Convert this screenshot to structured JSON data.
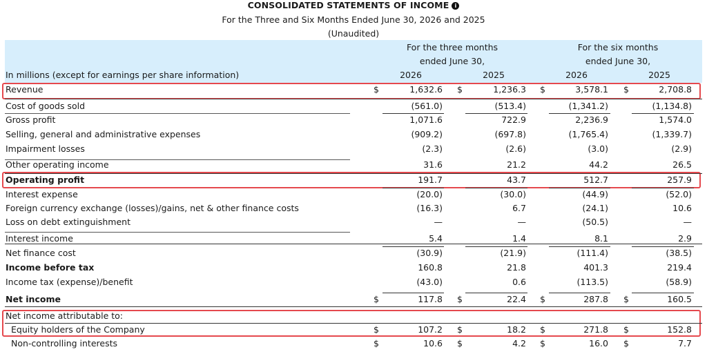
{
  "title": "CONSOLIDATED STATEMENTS OF INCOME",
  "info_glyph": "i",
  "subtitle": "For the Three and Six Months Ended June 30, 2026 and 2025",
  "unaudited": "(Unaudited)",
  "header": {
    "three_months_l1": "For the three months",
    "three_months_l2": "ended June 30,",
    "six_months_l1": "For the six months",
    "six_months_l2": "ended June 30,",
    "units_label": "In millions (except for earnings per share information)",
    "years": [
      "2026",
      "2025",
      "2026",
      "2025"
    ]
  },
  "currency_symbol": "$",
  "rows": [
    {
      "label": "Revenue",
      "values": [
        "1,632.6",
        "1,236.3",
        "3,578.1",
        "2,708.8"
      ],
      "dollar": true
    },
    {
      "label": "Cost of goods sold",
      "values": [
        "(561.0)",
        "(513.4)",
        "(1,341.2)",
        "(1,134.8)"
      ]
    },
    {
      "label": "Gross profit",
      "values": [
        "1,071.6",
        "722.9",
        "2,236.9",
        "1,574.0"
      ]
    },
    {
      "label": "Selling, general and administrative expenses",
      "values": [
        "(909.2)",
        "(697.8)",
        "(1,765.4)",
        "(1,339.7)"
      ]
    },
    {
      "label": "Impairment losses",
      "values": [
        "(2.3)",
        "(2.6)",
        "(3.0)",
        "(2.9)"
      ]
    },
    {
      "label": "Other operating income",
      "values": [
        "31.6",
        "21.2",
        "44.2",
        "26.5"
      ]
    },
    {
      "label": "Operating profit",
      "values": [
        "191.7",
        "43.7",
        "512.7",
        "257.9"
      ],
      "bold": true
    },
    {
      "label": "Interest expense",
      "values": [
        "(20.0)",
        "(30.0)",
        "(44.9)",
        "(52.0)"
      ]
    },
    {
      "label": "Foreign currency exchange (losses)/gains, net & other finance costs",
      "values": [
        "(16.3)",
        "6.7",
        "(24.1)",
        "10.6"
      ]
    },
    {
      "label": "Loss on debt extinguishment",
      "values": [
        "—",
        "—",
        "(50.5)",
        "—"
      ]
    },
    {
      "label": "Interest income",
      "values": [
        "5.4",
        "1.4",
        "8.1",
        "2.9"
      ]
    },
    {
      "label": "Net finance cost",
      "values": [
        "(30.9)",
        "(21.9)",
        "(111.4)",
        "(38.5)"
      ]
    },
    {
      "label": "Income before tax",
      "values": [
        "160.8",
        "21.8",
        "401.3",
        "219.4"
      ],
      "bold": true
    },
    {
      "label": "Income tax (expense)/benefit",
      "values": [
        "(43.0)",
        "0.6",
        "(113.5)",
        "(58.9)"
      ]
    },
    {
      "label": "Net income",
      "values": [
        "117.8",
        "22.4",
        "287.8",
        "160.5"
      ],
      "bold": true,
      "dollar": true
    },
    {
      "label": "Net income attributable to:",
      "values": [
        "",
        "",
        "",
        ""
      ]
    },
    {
      "label": "Equity holders of the Company",
      "values": [
        "107.2",
        "18.2",
        "271.8",
        "152.8"
      ],
      "dollar": true,
      "indent": true
    },
    {
      "label": "Non-controlling interests",
      "values": [
        "10.6",
        "4.2",
        "16.0",
        "7.7"
      ],
      "dollar": true,
      "indent": true
    }
  ]
}
